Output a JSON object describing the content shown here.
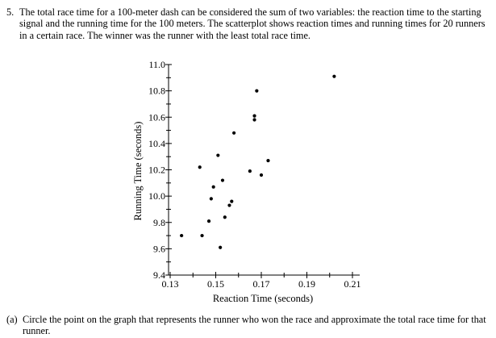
{
  "question": {
    "number": "5.",
    "text": "The total race time for a 100-meter dash can be considered the sum of two variables: the reaction time to the starting signal and the running time for the 100 meters. The scatterplot shows reaction times and running times for 20 runners in a certain race. The winner was the runner with the least total race time."
  },
  "part_a": {
    "label": "(a)",
    "text": "Circle the point on the graph that represents the runner who won the race and approximate the total race time for that runner."
  },
  "chart_data": {
    "type": "scatter",
    "xlabel": "Reaction Time (seconds)",
    "ylabel": "Running Time (seconds)",
    "xlim": [
      0.13,
      0.21
    ],
    "ylim": [
      9.4,
      11.0
    ],
    "x_ticks": [
      "0.13",
      "0.15",
      "0.17",
      "0.19",
      "0.21"
    ],
    "y_ticks": [
      "9.4",
      "9.6",
      "9.8",
      "10.0",
      "10.2",
      "10.4",
      "10.6",
      "10.8",
      "11.0"
    ],
    "grid": false,
    "series": [
      {
        "points": [
          {
            "x": 0.135,
            "y": 9.7
          },
          {
            "x": 0.143,
            "y": 10.22
          },
          {
            "x": 0.144,
            "y": 9.7
          },
          {
            "x": 0.147,
            "y": 9.81
          },
          {
            "x": 0.148,
            "y": 9.98
          },
          {
            "x": 0.149,
            "y": 10.07
          },
          {
            "x": 0.151,
            "y": 10.31
          },
          {
            "x": 0.152,
            "y": 9.61
          },
          {
            "x": 0.153,
            "y": 10.12
          },
          {
            "x": 0.154,
            "y": 9.84
          },
          {
            "x": 0.156,
            "y": 9.93
          },
          {
            "x": 0.157,
            "y": 9.96
          },
          {
            "x": 0.158,
            "y": 10.48
          },
          {
            "x": 0.165,
            "y": 10.19
          },
          {
            "x": 0.167,
            "y": 10.58
          },
          {
            "x": 0.167,
            "y": 10.61
          },
          {
            "x": 0.168,
            "y": 10.8
          },
          {
            "x": 0.17,
            "y": 10.16
          },
          {
            "x": 0.173,
            "y": 10.27
          },
          {
            "x": 0.202,
            "y": 10.91
          }
        ]
      }
    ]
  }
}
